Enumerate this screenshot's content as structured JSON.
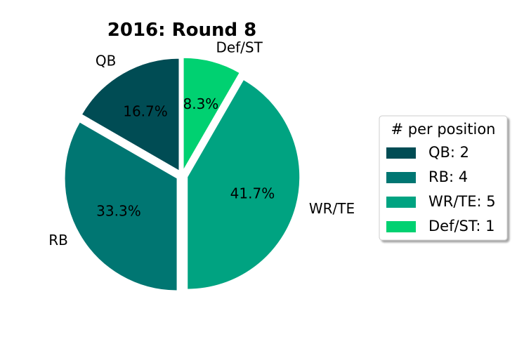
{
  "chart_data": {
    "type": "pie",
    "title": "2016: Round 8",
    "categories": [
      "QB",
      "RB",
      "WR/TE",
      "Def/ST"
    ],
    "values": [
      2,
      4,
      5,
      1
    ],
    "percent_labels": [
      "16.7%",
      "33.3%",
      "41.7%",
      "8.3%"
    ],
    "colors": [
      "#004c54",
      "#007672",
      "#00a381",
      "#00d171"
    ],
    "exploded": true,
    "start_angle_deg": 90,
    "direction": "counterclockwise",
    "legend": {
      "title": "# per position",
      "entries": [
        "QB: 2",
        "RB: 4",
        "WR/TE: 5",
        "Def/ST: 1"
      ],
      "placement": "right"
    }
  }
}
